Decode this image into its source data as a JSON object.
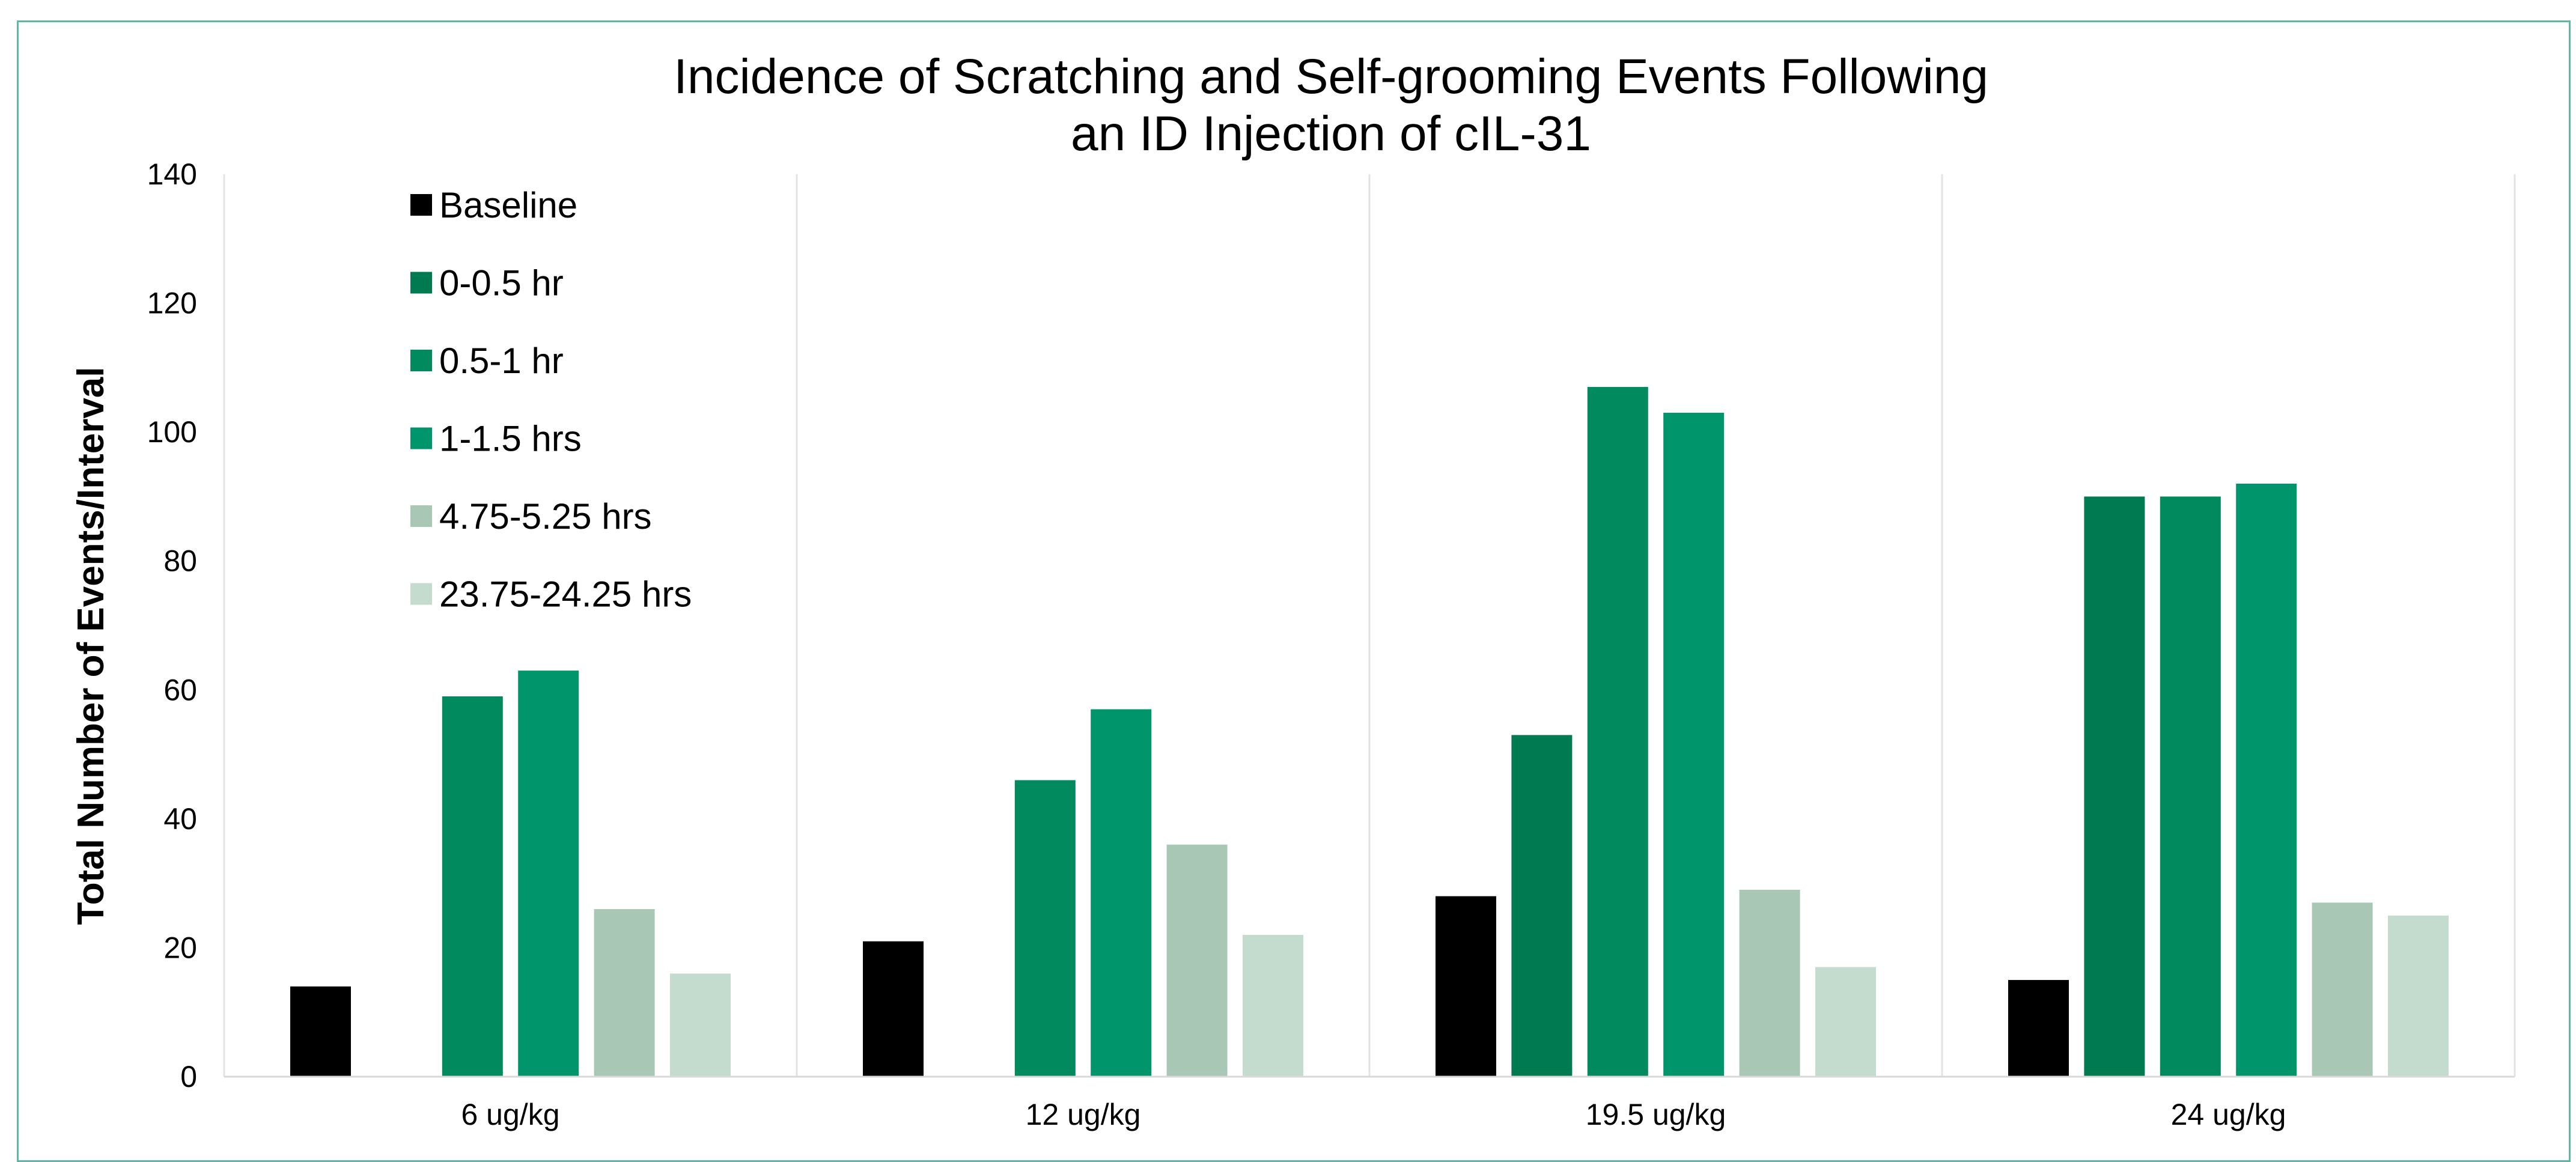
{
  "chart_data": {
    "type": "bar",
    "title": "Incidence of Scratching and Self-grooming Events Following an ID Injection of cIL-31",
    "title_lines": [
      "Incidence of Scratching and Self-grooming Events Following",
      "an ID Injection of cIL-31"
    ],
    "xlabel": "",
    "ylabel": "Total Number of Events/Interval",
    "ylim": [
      0,
      140
    ],
    "yticks": [
      0,
      20,
      40,
      60,
      80,
      100,
      120,
      140
    ],
    "grid": "vertical separators between categories",
    "legend_position": "top-left",
    "categories": [
      "6 ug/kg",
      "12 ug/kg",
      "19.5 ug/kg",
      "24 ug/kg"
    ],
    "series": [
      {
        "name": "Baseline",
        "color": "#000000",
        "values": [
          14,
          21,
          28,
          15
        ]
      },
      {
        "name": "0-0.5 hr",
        "color": "#007a50",
        "values": [
          null,
          null,
          53,
          90
        ]
      },
      {
        "name": "0.5-1 hr",
        "color": "#008a5e",
        "values": [
          59,
          46,
          107,
          90
        ]
      },
      {
        "name": "1-1.5 hrs",
        "color": "#00956a",
        "values": [
          63,
          57,
          103,
          92
        ]
      },
      {
        "name": "4.75-5.25 hrs",
        "color": "#a8c8b5",
        "values": [
          26,
          36,
          29,
          27
        ]
      },
      {
        "name": "23.75-24.25 hrs",
        "color": "#c3dccd",
        "values": [
          16,
          22,
          17,
          25
        ]
      }
    ]
  }
}
